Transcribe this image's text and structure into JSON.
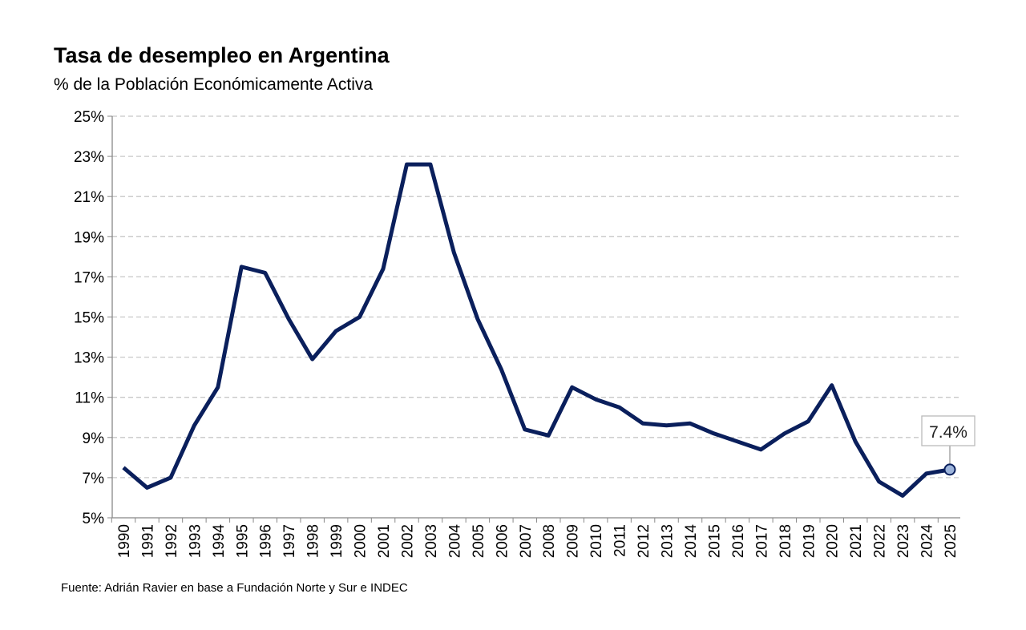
{
  "chart_data": {
    "type": "line",
    "title": "Tasa de desempleo en Argentina",
    "subtitle": "% de la Población Económicamente Activa",
    "source": "Fuente: Adrián Ravier en base a Fundación Norte y Sur e INDEC",
    "x": [
      "1990",
      "1991",
      "1992",
      "1993",
      "1994",
      "1995",
      "1996",
      "1997",
      "1998",
      "1999",
      "2000",
      "2001",
      "2002",
      "2003",
      "2004",
      "2005",
      "2006",
      "2007",
      "2008",
      "2009",
      "2010",
      "2011",
      "2012",
      "2013",
      "2014",
      "2015",
      "2016",
      "2017",
      "2018",
      "2019",
      "2020",
      "2021",
      "2022",
      "2023",
      "2024",
      "2025"
    ],
    "series": [
      {
        "values": [
          7.5,
          6.5,
          7.0,
          9.6,
          11.5,
          17.5,
          17.2,
          14.9,
          12.9,
          14.3,
          15.0,
          17.4,
          22.6,
          22.6,
          18.2,
          14.9,
          12.4,
          9.4,
          9.1,
          11.5,
          10.9,
          10.5,
          9.7,
          9.6,
          9.7,
          9.2,
          8.8,
          8.4,
          9.2,
          9.8,
          11.6,
          8.8,
          6.8,
          6.1,
          7.2,
          7.4
        ],
        "color": "#0a1f5c"
      }
    ],
    "yticks": [
      "5%",
      "7%",
      "9%",
      "11%",
      "13%",
      "15%",
      "17%",
      "19%",
      "21%",
      "23%",
      "25%"
    ],
    "ylim": [
      5,
      25
    ],
    "grid": true,
    "annotation": {
      "x": "2025",
      "label": "7.4%",
      "marker_color": "#9db4db"
    }
  }
}
